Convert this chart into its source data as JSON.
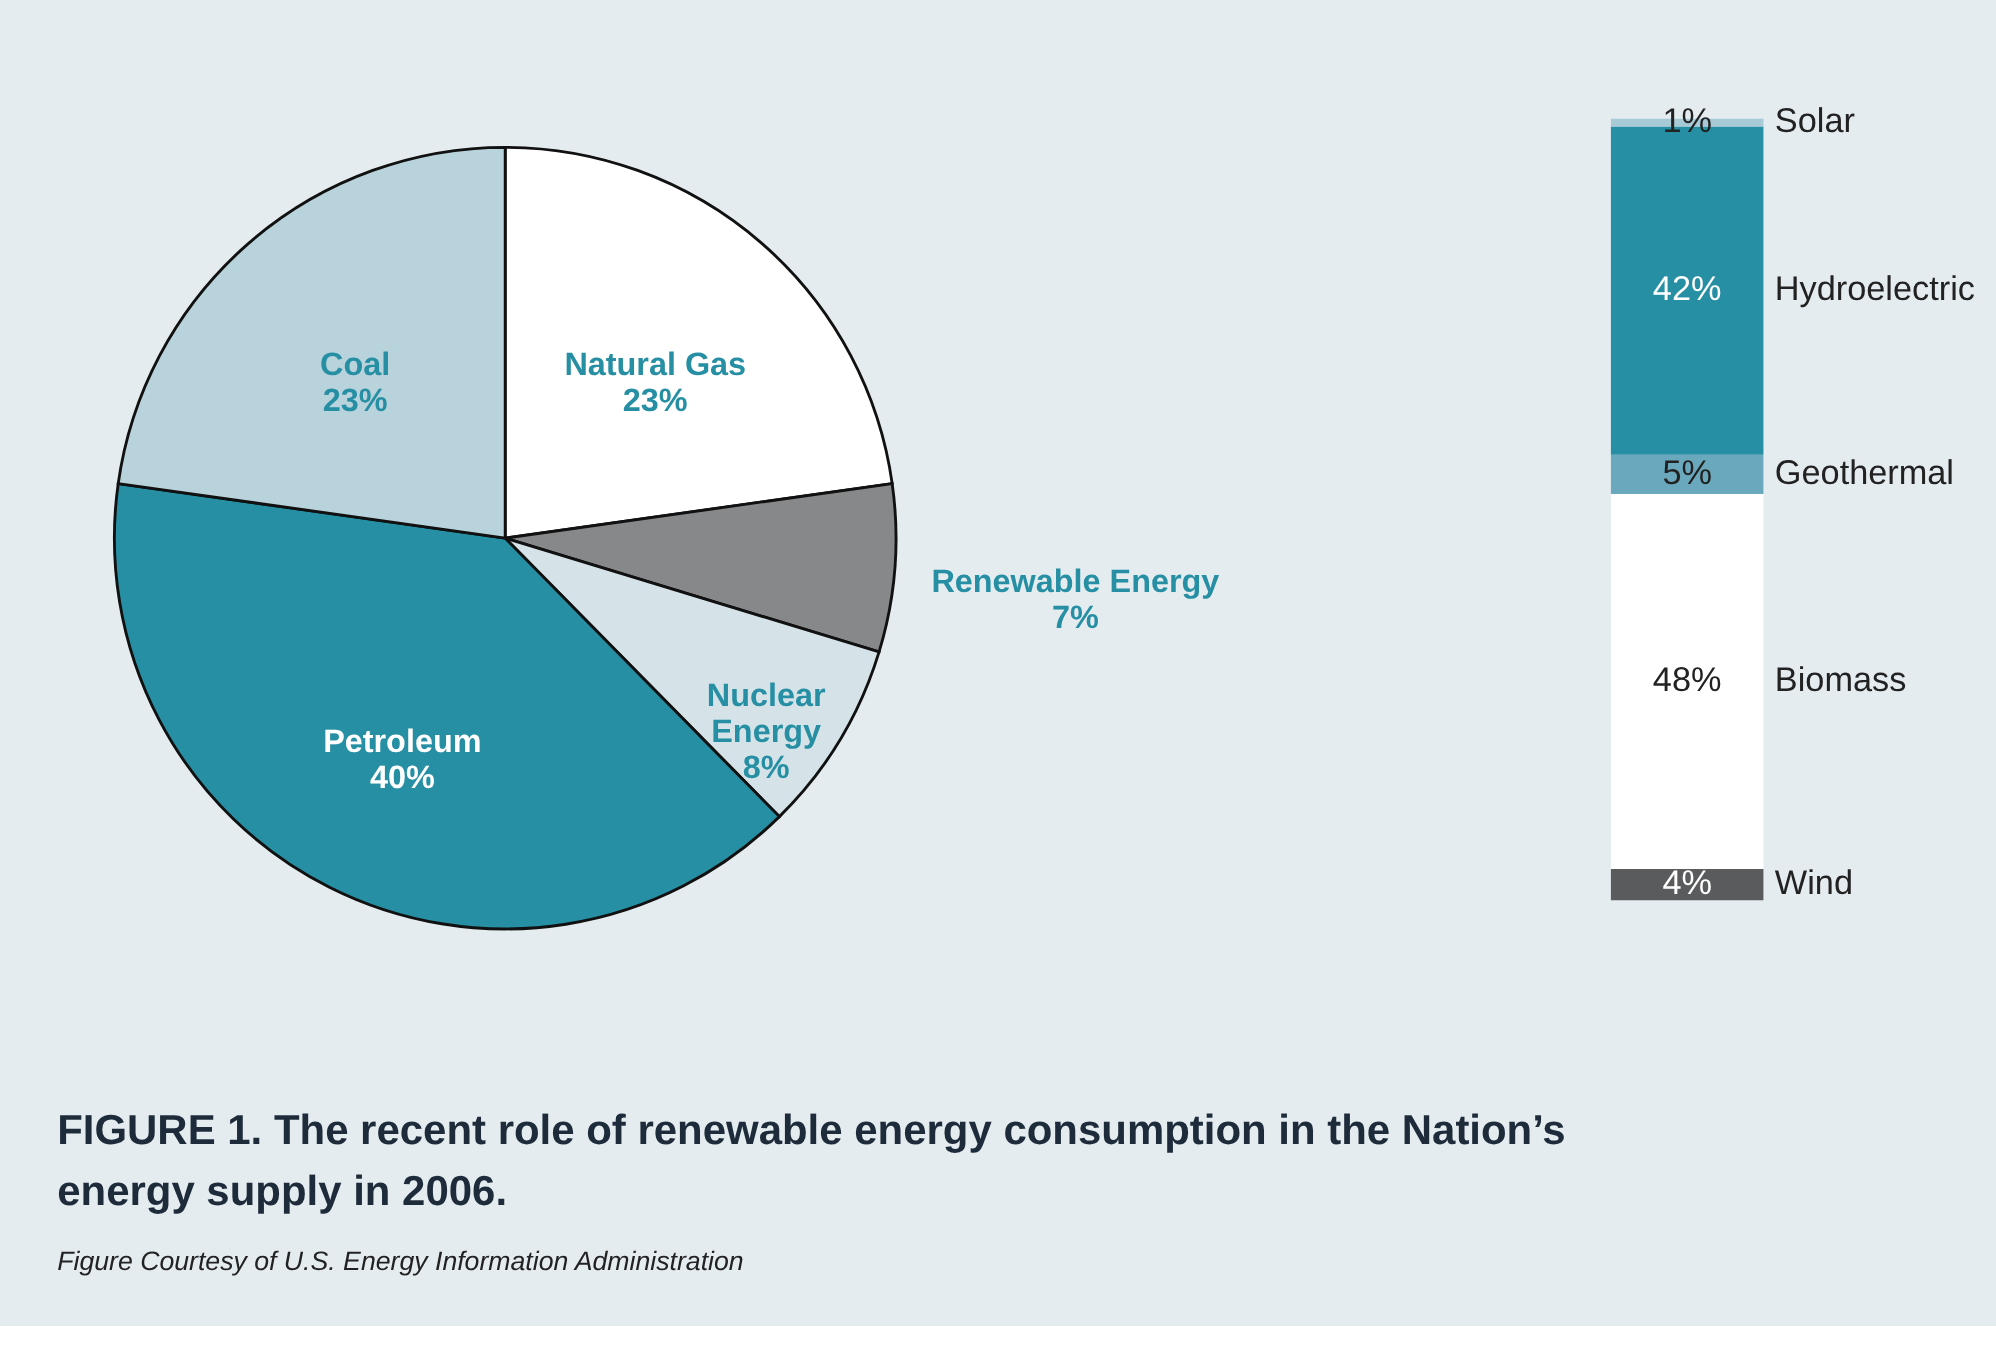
{
  "chart_data": [
    {
      "type": "pie",
      "title": "FIGURE 1. The recent role of renewable energy consumption in the Nation’s energy supply in 2006.",
      "categories": [
        "Natural Gas",
        "Renewable Energy",
        "Nuclear Energy",
        "Petroleum",
        "Coal"
      ],
      "values": [
        23,
        7,
        8,
        40,
        23
      ],
      "value_labels": [
        "23%",
        "7%",
        "8%",
        "40%",
        "23%"
      ],
      "colors": [
        "#ffffff",
        "#87888a",
        "#d5e3e8",
        "#268fa3",
        "#b9d3dc"
      ],
      "annotations": [
        "Figure Courtesy of U.S. Energy Information Administration"
      ],
      "legend": false
    },
    {
      "type": "bar",
      "stacked": true,
      "categories": [
        null
      ],
      "legend": false,
      "series": [
        {
          "name": "Wind",
          "color": "#5a5b5d",
          "values": [
            4
          ],
          "value_labels": [
            "4%"
          ]
        },
        {
          "name": "Biomass",
          "color": "#ffffff",
          "values": [
            48
          ],
          "value_labels": [
            "48%"
          ]
        },
        {
          "name": "Geothermal",
          "color": "#6aa9bd",
          "values": [
            5
          ],
          "value_labels": [
            "5%"
          ]
        },
        {
          "name": "Hydroelectric",
          "color": "#268fa3",
          "values": [
            42
          ],
          "value_labels": [
            "42%"
          ]
        },
        {
          "name": "Solar",
          "color": "#a8c9d6",
          "values": [
            1
          ],
          "value_labels": [
            "1%"
          ]
        }
      ]
    }
  ]
}
